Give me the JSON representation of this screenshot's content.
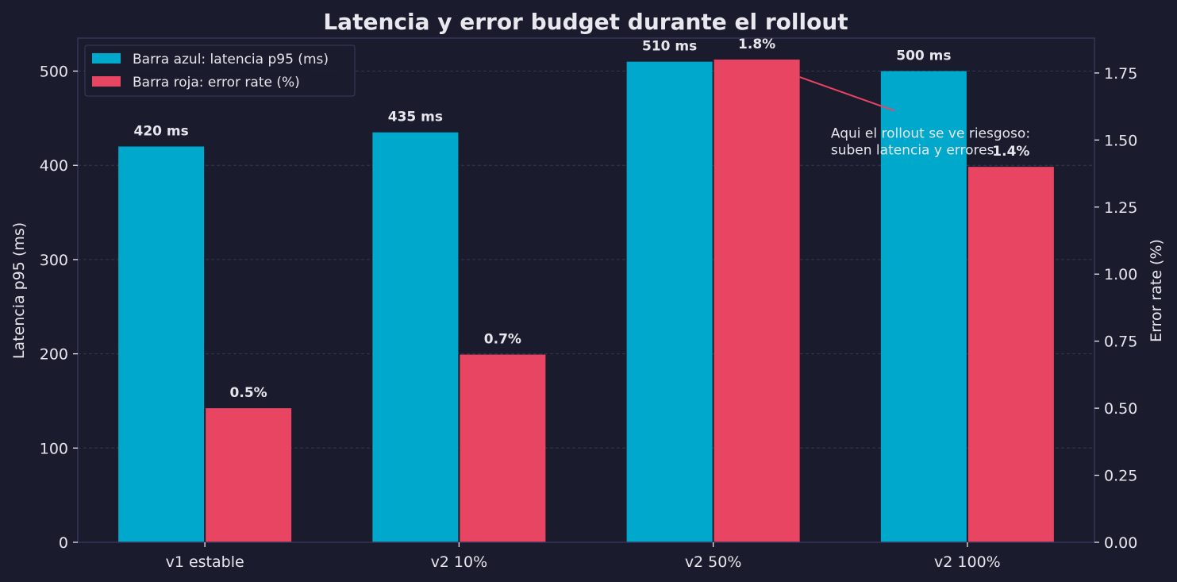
{
  "chart_data": {
    "type": "bar",
    "title": "Latencia y error budget durante el rollout",
    "categories": [
      "v1 estable",
      "v2 10%",
      "v2 50%",
      "v2 100%"
    ],
    "series": [
      {
        "name": "Barra azul: latencia p95 (ms)",
        "axis": "left",
        "color": "#00a8cc",
        "values": [
          420,
          435,
          510,
          500
        ],
        "labels": [
          "420 ms",
          "435 ms",
          "510 ms",
          "500 ms"
        ]
      },
      {
        "name": "Barra roja: error rate (%)",
        "axis": "right",
        "color": "#e84562",
        "values": [
          0.5,
          0.7,
          1.8,
          1.4
        ],
        "labels": [
          "0.5%",
          "0.7%",
          "1.8%",
          "1.4%"
        ]
      }
    ],
    "ylabel": "Latencia p95 (ms)",
    "ylabel_right": "Error rate (%)",
    "ylim": [
      0,
      535
    ],
    "ylim_right": [
      0,
      1.88
    ],
    "yticks": [
      0,
      100,
      200,
      300,
      400,
      500
    ],
    "yticks_right": [
      0.0,
      0.25,
      0.5,
      0.75,
      1.0,
      1.25,
      1.5,
      1.75
    ],
    "ytick_labels": [
      "0",
      "100",
      "200",
      "300",
      "400",
      "500"
    ],
    "ytick_labels_right": [
      "0.00",
      "0.25",
      "0.50",
      "0.75",
      "1.00",
      "1.25",
      "1.50",
      "1.75"
    ],
    "grid": true,
    "legend_position": "top-left",
    "annotation": {
      "lines": [
        "Aqui el rollout se ve riesgoso:",
        "suben latencia y errores"
      ],
      "target_category": "v2 50%",
      "target_series": 1,
      "text_category": "v2 100%",
      "text_value_right": 1.55
    }
  },
  "colors": {
    "background": "#1b1b2e",
    "frame": "#34355a",
    "grid": "#2c3a55",
    "text": "#e6e6ec",
    "annotation_line": "#e84562"
  }
}
